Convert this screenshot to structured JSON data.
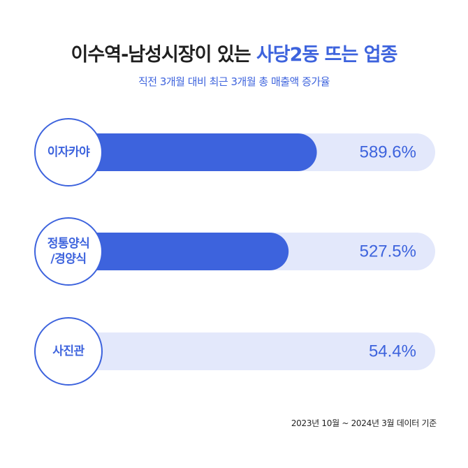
{
  "title": {
    "prefix": "이수역-남성시장이 있는",
    "highlight": "사당2동 뜨는 업종"
  },
  "subtitle": "직전 3개월 대비 최근 3개월 총 매출액 증가율",
  "footnote": "2023년 10월 ~ 2024년 3월 데이터 기준",
  "colors": {
    "accent": "#3d63dd",
    "track": "#e3e8fb",
    "title": "#1f1f1f",
    "circle_border": "#3d63dd",
    "value_text": "#3d63dd"
  },
  "chart_data": {
    "type": "bar",
    "orientation": "horizontal",
    "categories": [
      [
        "이자카야"
      ],
      [
        "정통양식",
        "/경양식"
      ],
      [
        "사진관"
      ]
    ],
    "values": [
      589.6,
      527.5,
      54.4
    ],
    "value_labels": [
      "589.6%",
      "527.5%",
      "54.4%"
    ],
    "unit": "%",
    "xlim": [
      0,
      850
    ]
  }
}
